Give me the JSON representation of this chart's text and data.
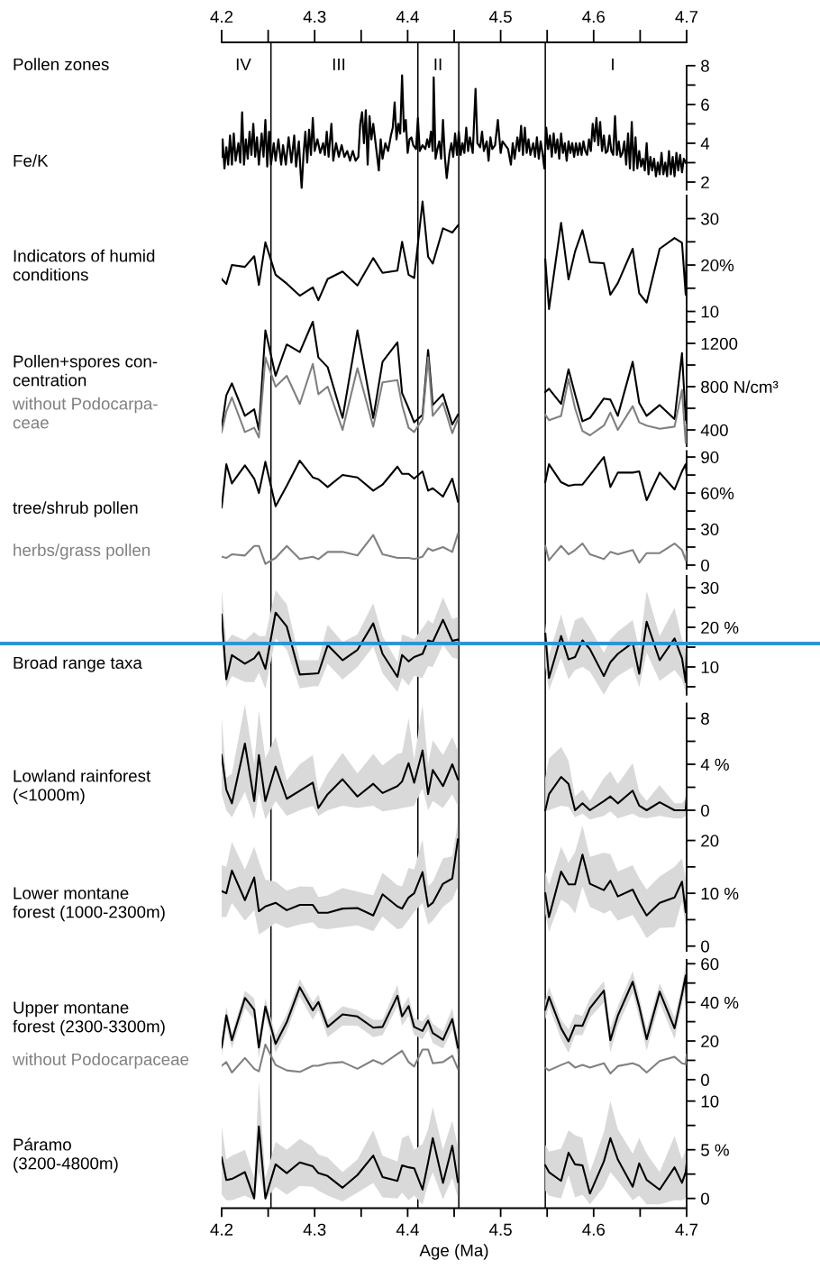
{
  "chart_data": [
    {
      "type": "line",
      "ylabel": "Fe/K",
      "annotations": [
        "Pollen zones",
        "IV",
        "III",
        "II",
        "I"
      ],
      "xlim": [
        4.2,
        4.7
      ],
      "x2lim": [
        4.2,
        4.7
      ],
      "x2ticks": [
        4.2,
        {
          "value": 4.25,
          "label": null
        },
        4.3,
        {
          "value": 4.35,
          "label": null
        },
        4.4,
        {
          "value": 4.45,
          "label": null
        },
        4.5,
        {
          "value": 4.55,
          "label": null
        },
        4.6,
        {
          "value": 4.65,
          "label": null
        },
        4.7
      ],
      "ylim": [
        1.6,
        9.2
      ],
      "yticks": [
        2,
        {
          "value": 3,
          "label": null
        },
        4,
        {
          "value": 5,
          "label": null
        },
        6,
        {
          "value": 7,
          "label": null
        },
        8
      ],
      "ref_lines": [
        {
          "axis": "x",
          "value": 4.253
        },
        {
          "axis": "x",
          "value": 4.411
        },
        {
          "axis": "x",
          "value": 4.455
        },
        {
          "axis": "x",
          "value": 4.548
        }
      ],
      "series": [
        {
          "color": "#000000",
          "x": [
            4.2,
            4.201,
            4.203,
            4.205,
            4.207,
            4.209,
            4.211,
            4.213,
            4.215,
            4.218,
            4.22,
            4.222,
            4.224,
            4.226,
            4.228,
            4.23,
            4.232,
            4.234,
            4.236,
            4.238,
            4.24,
            4.243,
            4.245,
            4.247,
            4.249,
            4.251,
            4.253,
            4.256,
            4.258,
            4.261,
            4.264,
            4.266,
            4.269,
            4.272,
            4.275,
            4.278,
            4.28,
            4.283,
            4.285,
            4.286,
            4.288,
            4.29,
            4.292,
            4.294,
            4.296,
            4.298,
            4.3,
            4.303,
            4.306,
            4.309,
            4.311,
            4.313,
            4.315,
            4.318,
            4.32,
            4.323,
            4.326,
            4.329,
            4.332,
            4.335,
            4.338,
            4.341,
            4.344,
            4.347,
            4.349,
            4.351,
            4.353,
            4.355,
            4.357,
            4.359,
            4.361,
            4.363,
            4.366,
            4.369,
            4.371,
            4.373,
            4.376,
            4.379,
            4.382,
            4.384,
            4.386,
            4.388,
            4.39,
            4.392,
            4.394,
            4.396,
            4.398,
            4.4,
            4.402,
            4.404,
            4.406,
            4.409,
            4.411,
            4.413,
            4.416,
            4.419,
            4.421,
            4.423,
            4.425,
            4.427,
            4.428,
            4.43,
            4.432,
            4.434,
            4.436,
            4.438,
            4.44,
            4.442,
            4.445,
            4.447,
            4.449,
            4.451,
            4.453,
            4.455,
            4.457,
            4.459,
            4.461,
            4.463,
            4.465,
            4.467,
            4.47,
            4.473,
            4.475,
            4.478,
            4.48,
            4.482,
            4.485,
            4.487,
            4.489,
            4.491,
            4.494,
            4.497,
            4.5,
            4.502,
            4.505,
            4.508,
            4.511,
            4.513,
            4.515,
            4.518,
            4.52,
            4.522,
            4.524,
            4.526,
            4.528,
            4.53,
            4.532,
            4.535,
            4.537,
            4.539,
            4.541,
            4.543,
            4.545,
            4.547,
            4.549,
            4.551,
            4.553,
            4.555,
            4.557,
            4.559,
            4.561,
            4.563,
            4.565,
            4.567,
            4.569,
            4.571,
            4.573,
            4.575,
            4.577,
            4.579,
            4.581,
            4.583,
            4.585,
            4.587,
            4.589,
            4.591,
            4.593,
            4.595,
            4.597,
            4.599,
            4.601,
            4.603,
            4.605,
            4.607,
            4.609,
            4.611,
            4.613,
            4.615,
            4.617,
            4.619,
            4.621,
            4.623,
            4.625,
            4.627,
            4.629,
            4.631,
            4.633,
            4.635,
            4.637,
            4.639,
            4.641,
            4.643,
            4.645,
            4.647,
            4.649,
            4.651,
            4.653,
            4.655,
            4.657,
            4.659,
            4.661,
            4.663,
            4.665,
            4.667,
            4.669,
            4.671,
            4.673,
            4.675,
            4.677,
            4.679,
            4.681,
            4.683,
            4.685,
            4.687,
            4.689,
            4.691,
            4.693,
            4.695,
            4.697,
            4.699
          ],
          "values": [
            3.3,
            4.2,
            2.7,
            3.8,
            2.9,
            4.4,
            2.9,
            4.5,
            3.1,
            4.0,
            3.0,
            5.6,
            2.9,
            4.2,
            3.2,
            4.6,
            3.4,
            5.0,
            3.3,
            4.3,
            2.9,
            4.5,
            3.3,
            5.2,
            2.8,
            4.6,
            2.9,
            4.0,
            3.1,
            4.2,
            2.9,
            3.9,
            2.9,
            4.3,
            3.0,
            4.4,
            2.8,
            4.1,
            2.4,
            1.7,
            3.4,
            4.6,
            3.0,
            4.7,
            3.4,
            5.3,
            3.6,
            4.2,
            3.5,
            4.0,
            3.4,
            4.6,
            3.3,
            5.0,
            3.1,
            4.0,
            3.3,
            3.9,
            3.3,
            3.6,
            3.1,
            3.6,
            3.1,
            3.3,
            5.0,
            5.6,
            4.0,
            5.7,
            2.9,
            5.4,
            4.2,
            5.0,
            3.8,
            2.6,
            4.2,
            3.2,
            4.0,
            3.6,
            4.4,
            4.8,
            6.1,
            4.2,
            5.0,
            4.5,
            7.5,
            4.6,
            5.2,
            3.5,
            4.2,
            4.3,
            3.9,
            3.7,
            5.3,
            3.6,
            3.9,
            3.7,
            4.2,
            3.8,
            4.6,
            3.6,
            7.4,
            3.2,
            3.7,
            4.1,
            3.2,
            5.2,
            3.3,
            2.2,
            3.5,
            4.0,
            3.3,
            4.5,
            3.4,
            4.6,
            3.4,
            4.0,
            3.5,
            4.8,
            3.6,
            4.3,
            3.5,
            6.8,
            4.0,
            3.8,
            4.6,
            3.6,
            4.1,
            3.1,
            4.3,
            3.7,
            3.9,
            5.2,
            3.5,
            4.1,
            3.9,
            3.7,
            2.9,
            4.0,
            3.2,
            4.3,
            3.6,
            4.9,
            3.4,
            4.8,
            3.5,
            4.2,
            3.4,
            4.0,
            3.3,
            4.3,
            3.2,
            4.1,
            3.5,
            2.7,
            4.8,
            3.7,
            4.4,
            3.3,
            4.5,
            3.5,
            4.2,
            3.2,
            4.5,
            3.5,
            4.0,
            3.1,
            4.1,
            3.5,
            4.0,
            3.3,
            4.0,
            3.4,
            4.0,
            3.4,
            4.1,
            3.6,
            3.4,
            4.2,
            3.6,
            5.0,
            4.1,
            5.3,
            3.9,
            5.1,
            3.6,
            4.4,
            3.5,
            3.6,
            4.4,
            3.6,
            3.4,
            5.4,
            3.4,
            4.1,
            3.3,
            3.5,
            4.1,
            2.9,
            4.5,
            2.7,
            5.1,
            2.6,
            4.3,
            2.7,
            3.6,
            2.8,
            3.2,
            2.6,
            4.0,
            2.4,
            3.3,
            2.6,
            3.2,
            2.3,
            3.0,
            2.4,
            3.5,
            2.4,
            3.0,
            2.3,
            3.6,
            2.4,
            3.3,
            2.3,
            3.5,
            2.6,
            3.4,
            2.5,
            3.2,
            3.0
          ]
        }
      ]
    },
    {
      "type": "line",
      "title": "Indicators of humid\nconditions",
      "tick_labels": "y",
      "xlim": [
        4.2,
        4.7
      ],
      "x": [
        4.2,
        4.205,
        4.211,
        4.225,
        4.235,
        4.24,
        4.247,
        4.258,
        4.27,
        4.284,
        4.298,
        4.304,
        4.314,
        4.33,
        4.346,
        4.363,
        4.373,
        4.389,
        4.394,
        4.401,
        4.407,
        4.416,
        4.422,
        4.427,
        4.438,
        4.448,
        4.454,
        4.5,
        4.548,
        4.552,
        4.565,
        4.573,
        4.58,
        4.588,
        4.596,
        4.611,
        4.618,
        4.626,
        4.642,
        4.649,
        4.657,
        4.671,
        4.687,
        4.695,
        4.699,
        4.7
      ],
      "ylim": [
        9,
        35
      ],
      "yticks": [
        10,
        {
          "value": 15,
          "label": null
        },
        {
          "value": 20,
          "label": "20%"
        },
        {
          "value": 25,
          "label": null
        },
        30
      ],
      "series": [
        {
          "color": "#000000",
          "values": [
            17,
            15.9,
            20,
            19.6,
            21.9,
            15.7,
            24.9,
            17.9,
            16,
            13.4,
            15.2,
            12.4,
            17,
            18.6,
            15.6,
            21.5,
            18.3,
            18.8,
            25,
            17.9,
            17.2,
            33.7,
            21.8,
            20.3,
            27.9,
            27,
            28.5,
            null,
            21.2,
            10.5,
            29.1,
            16.9,
            22.9,
            27.5,
            20.6,
            20.4,
            13.6,
            16.1,
            23.5,
            13.9,
            11.9,
            23.5,
            25.8,
            24.8,
            13.6,
            25.5
          ]
        }
      ]
    },
    {
      "type": "line",
      "title": "Pollen+spores con-\ncentration",
      "tick_labels": "y",
      "xlim": [
        4.2,
        4.7
      ],
      "x": [
        4.2,
        4.205,
        4.211,
        4.225,
        4.235,
        4.24,
        4.247,
        4.258,
        4.27,
        4.284,
        4.298,
        4.304,
        4.314,
        4.33,
        4.346,
        4.363,
        4.373,
        4.389,
        4.394,
        4.401,
        4.407,
        4.416,
        4.422,
        4.427,
        4.438,
        4.448,
        4.454,
        4.5,
        4.548,
        4.552,
        4.565,
        4.573,
        4.58,
        4.588,
        4.596,
        4.611,
        4.618,
        4.626,
        4.642,
        4.649,
        4.657,
        4.671,
        4.687,
        4.695,
        4.699,
        4.7
      ],
      "ylim": [
        250,
        1450
      ],
      "yticks": [
        400,
        {
          "value": 600,
          "label": null
        },
        {
          "value": 800,
          "label": "800 N/cm³"
        },
        {
          "value": 1000,
          "label": null
        },
        1200,
        {
          "value": 1400,
          "label": null
        }
      ],
      "series": [
        {
          "color": "#000000",
          "values": [
            420,
            720,
            830,
            530,
            590,
            400,
            1320,
            900,
            1190,
            1120,
            1400,
            1070,
            980,
            510,
            1320,
            510,
            1030,
            1210,
            740,
            600,
            470,
            540,
            1140,
            630,
            730,
            450,
            540,
            null,
            750,
            780,
            640,
            960,
            730,
            480,
            510,
            690,
            680,
            530,
            1030,
            650,
            530,
            630,
            500,
            1110,
            490,
            590
          ]
        },
        {
          "name": "without Podocarpa-\nceae",
          "color": "#808080",
          "values": [
            380,
            570,
            700,
            380,
            420,
            330,
            1070,
            800,
            900,
            640,
            1010,
            730,
            800,
            400,
            970,
            430,
            840,
            860,
            630,
            420,
            380,
            500,
            1070,
            530,
            650,
            370,
            500,
            null,
            540,
            490,
            530,
            870,
            600,
            390,
            350,
            440,
            560,
            400,
            620,
            470,
            440,
            410,
            430,
            770,
            280,
            450
          ]
        }
      ]
    },
    {
      "type": "line",
      "tick_labels": "y",
      "xlim": [
        4.2,
        4.7
      ],
      "x": [
        4.2,
        4.205,
        4.211,
        4.225,
        4.235,
        4.24,
        4.247,
        4.258,
        4.27,
        4.284,
        4.298,
        4.304,
        4.314,
        4.33,
        4.346,
        4.363,
        4.373,
        4.389,
        4.394,
        4.401,
        4.407,
        4.416,
        4.422,
        4.427,
        4.438,
        4.448,
        4.454,
        4.5,
        4.548,
        4.552,
        4.565,
        4.573,
        4.58,
        4.588,
        4.596,
        4.611,
        4.618,
        4.626,
        4.642,
        4.649,
        4.657,
        4.671,
        4.687,
        4.695,
        4.699,
        4.7
      ],
      "ylim": [
        -3,
        95
      ],
      "yticks": [
        0,
        {
          "value": 15,
          "label": null
        },
        30,
        {
          "value": 45,
          "label": null
        },
        {
          "value": 60,
          "label": "60%"
        },
        {
          "value": 75,
          "label": null
        },
        90
      ],
      "series": [
        {
          "name": "tree/shrub pollen",
          "color": "#000000",
          "values": [
            48,
            84,
            68,
            83,
            72,
            60,
            86,
            49,
            66,
            87,
            73,
            71.5,
            65,
            75,
            73,
            62,
            67,
            82,
            76,
            76,
            72,
            78,
            62,
            64,
            57,
            72,
            53,
            null,
            69,
            84,
            69,
            66,
            67,
            67,
            75,
            90,
            65,
            77,
            77,
            78,
            54,
            77,
            63,
            78,
            84,
            75
          ]
        },
        {
          "name": "herbs/grass pollen",
          "color": "#808080",
          "values": [
            7,
            6,
            9,
            8,
            16,
            16,
            1,
            6,
            16,
            5,
            7,
            5,
            11,
            11,
            8,
            25,
            9,
            6,
            6,
            6,
            5,
            7,
            14,
            12,
            15,
            11,
            26,
            null,
            16,
            4,
            16,
            9,
            12.5,
            18,
            9,
            5,
            11,
            9,
            12.5,
            2,
            10,
            10,
            18,
            12.5,
            4,
            11
          ]
        }
      ]
    },
    {
      "type": "line",
      "title": "Broad range taxa",
      "tick_labels": "y",
      "xlim": [
        4.2,
        4.7
      ],
      "x": [
        4.2,
        4.205,
        4.211,
        4.225,
        4.235,
        4.24,
        4.247,
        4.258,
        4.27,
        4.284,
        4.298,
        4.304,
        4.314,
        4.33,
        4.346,
        4.363,
        4.373,
        4.389,
        4.394,
        4.401,
        4.407,
        4.416,
        4.422,
        4.427,
        4.438,
        4.448,
        4.454,
        4.5,
        4.548,
        4.552,
        4.565,
        4.573,
        4.58,
        4.588,
        4.596,
        4.611,
        4.618,
        4.626,
        4.642,
        4.649,
        4.657,
        4.671,
        4.687,
        4.695,
        4.699,
        4.7
      ],
      "ylim": [
        3,
        33
      ],
      "yticks": [
        {
          "value": 5,
          "label": null
        },
        10,
        {
          "value": 15,
          "label": null
        },
        {
          "value": 20,
          "label": "20 %"
        },
        {
          "value": 25,
          "label": null
        },
        30
      ],
      "ref_lines": [
        {
          "axis": "y",
          "value": 15.9,
          "color": "#2e95d3"
        }
      ],
      "series": [
        {
          "color": "#000000",
          "values": [
            23.2,
            6.9,
            13,
            10.8,
            12.2,
            13.8,
            9.5,
            23.7,
            20.2,
            8.1,
            8.3,
            8.4,
            15.5,
            11.7,
            14.3,
            21,
            13.3,
            7.5,
            13,
            11.4,
            12.5,
            13.3,
            16.7,
            16.3,
            21.9,
            16.6,
            16.9,
            null,
            18.4,
            7.2,
            17.8,
            11.9,
            12.5,
            16.7,
            14.5,
            7.7,
            11.2,
            13.3,
            16.1,
            8.3,
            21.4,
            11.7,
            17.2,
            12.2,
            6.2,
            13.5
          ],
          "upper": [
            29.6,
            16.3,
            18.2,
            16.7,
            18.8,
            17.8,
            17.8,
            29.4,
            25.8,
            11.7,
            11.7,
            11.7,
            20.6,
            16.3,
            18.2,
            26.1,
            17.8,
            11.2,
            18.2,
            17.6,
            17,
            19.8,
            21.8,
            20.9,
            27.6,
            22.1,
            22.6,
            null,
            21,
            13,
            23.3,
            16.3,
            21.8,
            22.6,
            19.8,
            13.6,
            17,
            18.9,
            21.8,
            14.5,
            29.2,
            17.8,
            24.9,
            17,
            14.5,
            17
          ],
          "lower": [
            17,
            4.9,
            7.7,
            6.2,
            6.2,
            8.6,
            4.5,
            17.2,
            14.3,
            4.6,
            5.1,
            5.1,
            10.8,
            6.8,
            10,
            15.1,
            8.4,
            3.7,
            7.2,
            5.3,
            7.7,
            7.2,
            10.2,
            10,
            15.5,
            12.4,
            12,
            null,
            10,
            4.1,
            12.4,
            6.9,
            9.2,
            10,
            8.8,
            3,
            5.9,
            7.7,
            10,
            4.9,
            13.6,
            6.5,
            9.2,
            6.9,
            3.7,
            6.9
          ]
        }
      ]
    },
    {
      "type": "line",
      "title": "Lowland rainforest\n(<1000m)",
      "tick_labels": "y",
      "xlim": [
        4.2,
        4.7
      ],
      "x": [
        4.2,
        4.205,
        4.211,
        4.225,
        4.235,
        4.24,
        4.247,
        4.258,
        4.27,
        4.284,
        4.298,
        4.304,
        4.314,
        4.33,
        4.346,
        4.363,
        4.373,
        4.389,
        4.394,
        4.401,
        4.407,
        4.416,
        4.422,
        4.427,
        4.438,
        4.448,
        4.454,
        4.5,
        4.548,
        4.552,
        4.565,
        4.573,
        4.58,
        4.588,
        4.596,
        4.611,
        4.618,
        4.626,
        4.642,
        4.649,
        4.657,
        4.671,
        4.687,
        4.695,
        4.699,
        4.7
      ],
      "ylim": [
        -1,
        9.3
      ],
      "yticks": [
        0,
        {
          "value": 2,
          "label": null
        },
        {
          "value": 4,
          "label": "4 %"
        },
        {
          "value": 6,
          "label": null
        },
        8
      ],
      "series": [
        {
          "color": "#000000",
          "values": [
            4.8,
            1.8,
            0.6,
            5.8,
            0.8,
            4.8,
            0.8,
            3.8,
            1.0,
            1.7,
            2.4,
            0.2,
            1.4,
            2.7,
            1.2,
            2.3,
            1.5,
            2.1,
            2.5,
            4.1,
            2.4,
            5.2,
            1.4,
            3.5,
            2.1,
            4.0,
            2.7,
            null,
            0,
            1.4,
            2.9,
            2.3,
            0,
            0.6,
            0,
            0.8,
            1.2,
            0.6,
            1.7,
            0.4,
            0,
            0.7,
            0,
            0,
            0,
            1.2
          ],
          "upper": [
            8.1,
            2.8,
            3.2,
            9.2,
            4.0,
            8.7,
            4.5,
            6.4,
            2.6,
            4.0,
            4.8,
            1.6,
            3.2,
            5.0,
            3.2,
            4.9,
            3.9,
            4.9,
            5.0,
            8.0,
            4.4,
            9.2,
            4.0,
            6.1,
            4.8,
            6.4,
            5.2,
            null,
            2.8,
            4.5,
            5.5,
            4.3,
            1.2,
            1.8,
            0.8,
            2.8,
            3.4,
            2.3,
            4.1,
            1.6,
            0.8,
            2.2,
            0.6,
            0.6,
            1.0,
            2.6
          ],
          "lower": [
            1.4,
            0,
            -0.6,
            1.6,
            -0.8,
            1.6,
            -0.8,
            0.8,
            -0.5,
            0,
            0.4,
            -0.5,
            0,
            0.4,
            0.2,
            0.4,
            -0.1,
            0.1,
            0.2,
            0.3,
            0.4,
            1.9,
            0,
            0.8,
            0.2,
            1.4,
            0.4,
            null,
            -0.1,
            0,
            0.4,
            0.3,
            -0.6,
            -0.3,
            -0.8,
            -0.5,
            -0.1,
            -0.7,
            -0.3,
            -0.6,
            -0.7,
            -0.5,
            -0.7,
            -0.7,
            -0.5,
            0.3
          ]
        }
      ]
    },
    {
      "type": "line",
      "title": "Lower montane\nforest (1000-2300m)",
      "tick_labels": "y",
      "xlim": [
        4.2,
        4.7
      ],
      "x": [
        4.2,
        4.205,
        4.211,
        4.225,
        4.235,
        4.24,
        4.247,
        4.258,
        4.27,
        4.284,
        4.298,
        4.304,
        4.314,
        4.33,
        4.346,
        4.363,
        4.373,
        4.389,
        4.394,
        4.401,
        4.407,
        4.416,
        4.422,
        4.427,
        4.438,
        4.448,
        4.454,
        4.5,
        4.548,
        4.552,
        4.565,
        4.573,
        4.58,
        4.588,
        4.596,
        4.611,
        4.618,
        4.626,
        4.642,
        4.649,
        4.657,
        4.671,
        4.687,
        4.695,
        4.699,
        4.7
      ],
      "ylim": [
        -0.9,
        23.3
      ],
      "yticks": [
        0,
        {
          "value": 5,
          "label": null
        },
        {
          "value": 10,
          "label": "10 %"
        },
        {
          "value": 15,
          "label": null
        },
        20
      ],
      "series": [
        {
          "color": "#000000",
          "values": [
            10.4,
            10.0,
            14.3,
            8.7,
            13.0,
            6.6,
            7.5,
            8.2,
            6.8,
            7.8,
            7.8,
            6.3,
            6.3,
            7.1,
            7.2,
            5.8,
            9.8,
            7.5,
            7.1,
            9.2,
            10.0,
            14.0,
            7.5,
            8.2,
            11.8,
            12.8,
            20.2,
            null,
            10.0,
            5.5,
            14.1,
            11.7,
            11.7,
            17.3,
            11.8,
            10.6,
            12.4,
            9.4,
            10.7,
            8.2,
            5.8,
            8.2,
            9.2,
            12.2,
            6.4,
            9.6
          ],
          "upper": [
            15.3,
            15.0,
            19.7,
            14.5,
            18.8,
            16.1,
            12.6,
            12.2,
            10.5,
            11.3,
            11.2,
            9.3,
            9.6,
            11.0,
            10.3,
            9.6,
            13.9,
            11.5,
            11.3,
            14.8,
            14.5,
            20.2,
            11.3,
            12.2,
            16.6,
            17.0,
            23.3,
            null,
            14.1,
            11.5,
            18.8,
            15.8,
            17.8,
            22.8,
            16.9,
            17.7,
            17.4,
            14.1,
            15.3,
            12.9,
            10.7,
            13.2,
            15.0,
            16.6,
            12.6,
            14.5
          ],
          "lower": [
            5.5,
            5.5,
            8.2,
            4.8,
            6.8,
            2.2,
            3.0,
            4.4,
            3.4,
            4.1,
            4.5,
            3.4,
            3.2,
            3.6,
            3.9,
            2.8,
            5.6,
            3.2,
            3.4,
            5.0,
            6.5,
            8.2,
            4.1,
            4.8,
            7.4,
            8.8,
            11.3,
            null,
            6.2,
            2.7,
            8.8,
            7.9,
            6.2,
            11.3,
            7.4,
            6.2,
            6.8,
            4.8,
            5.9,
            3.9,
            1.5,
            3.4,
            3.6,
            8.5,
            3.9,
            5.9
          ]
        }
      ]
    },
    {
      "type": "line",
      "title": "Upper montane\nforest (2300-3300m)",
      "tick_labels": "y",
      "xlim": [
        4.2,
        4.7
      ],
      "x": [
        4.2,
        4.205,
        4.211,
        4.225,
        4.235,
        4.24,
        4.247,
        4.258,
        4.27,
        4.284,
        4.298,
        4.304,
        4.314,
        4.33,
        4.346,
        4.363,
        4.373,
        4.389,
        4.394,
        4.401,
        4.407,
        4.416,
        4.422,
        4.427,
        4.438,
        4.448,
        4.454,
        4.5,
        4.548,
        4.552,
        4.565,
        4.573,
        4.58,
        4.588,
        4.596,
        4.611,
        4.618,
        4.626,
        4.642,
        4.649,
        4.657,
        4.671,
        4.687,
        4.695,
        4.699,
        4.7
      ],
      "ylim": [
        0,
        62
      ],
      "yticks": [
        0,
        {
          "value": 10,
          "label": null
        },
        20,
        {
          "value": 30,
          "label": null
        },
        {
          "value": 40,
          "label": "40 %"
        },
        {
          "value": 50,
          "label": null
        },
        60
      ],
      "series": [
        {
          "color": "#000000",
          "values": [
            16.6,
            33.3,
            20.4,
            42.3,
            36.2,
            16.6,
            37.8,
            18.5,
            29.8,
            47.8,
            35.9,
            40.2,
            27.3,
            33.8,
            32.7,
            26.9,
            27.3,
            43.4,
            32.7,
            38.1,
            27.3,
            25.2,
            30.6,
            24.1,
            20.6,
            31.4,
            16.6,
            null,
            36.2,
            42.9,
            26.6,
            19.8,
            28.1,
            27.9,
            37.0,
            46.1,
            20.4,
            33.1,
            50.7,
            37.8,
            20.9,
            45.5,
            26.6,
            44.2,
            53.9,
            37.0
          ],
          "upper": [
            21,
            38,
            24,
            46,
            42,
            22,
            42,
            23,
            34,
            52,
            40,
            44,
            31,
            38,
            36,
            31,
            31,
            49,
            37,
            43,
            32,
            30,
            34,
            29,
            25,
            37,
            21,
            null,
            41,
            48,
            31,
            26,
            34,
            33,
            42,
            51,
            27,
            38,
            56,
            43,
            26,
            50,
            32,
            49,
            59,
            42
          ],
          "lower": [
            12,
            28,
            16,
            37,
            31,
            11,
            33,
            14,
            25,
            43,
            31,
            36,
            22,
            28,
            28,
            22,
            23,
            38,
            28,
            33,
            23,
            21,
            26,
            19,
            16,
            26,
            12,
            null,
            31,
            38,
            21,
            14,
            23,
            23,
            32,
            40,
            14,
            28,
            45,
            32,
            15,
            40,
            21,
            39,
            48,
            32
          ]
        },
        {
          "name": "without Podocarpaceae",
          "color": "#808080",
          "values": [
            7.2,
            9.1,
            3.7,
            11.2,
            5.6,
            4.3,
            18.2,
            7.6,
            4.8,
            4.0,
            7.2,
            7.2,
            8.5,
            9.1,
            5.6,
            10.1,
            8.0,
            13.3,
            14.9,
            9.1,
            6.8,
            15.6,
            15.6,
            8.5,
            9.1,
            12.4,
            5.6,
            null,
            6.1,
            4.8,
            7.6,
            9.1,
            6.3,
            7.6,
            6.3,
            8.5,
            3.2,
            7.0,
            8.5,
            7.2,
            3.7,
            9.6,
            11.8,
            8.5,
            8.0,
            12.9
          ]
        }
      ]
    },
    {
      "type": "line",
      "title": "Páramo\n(3200-4800m)",
      "xlabel": "Age (Ma)",
      "xlim": [
        4.2,
        4.7
      ],
      "xticks": [
        4.2,
        {
          "value": 4.25,
          "label": null
        },
        4.3,
        {
          "value": 4.35,
          "label": null
        },
        4.4,
        {
          "value": 4.45,
          "label": null
        },
        4.5,
        {
          "value": 4.55,
          "label": null
        },
        4.6,
        {
          "value": 4.65,
          "label": null
        },
        4.7
      ],
      "x": [
        4.2,
        4.205,
        4.211,
        4.225,
        4.235,
        4.24,
        4.247,
        4.258,
        4.27,
        4.284,
        4.298,
        4.304,
        4.314,
        4.33,
        4.346,
        4.363,
        4.373,
        4.389,
        4.394,
        4.401,
        4.407,
        4.416,
        4.422,
        4.427,
        4.438,
        4.448,
        4.454,
        4.5,
        4.548,
        4.552,
        4.565,
        4.573,
        4.58,
        4.588,
        4.596,
        4.611,
        4.618,
        4.626,
        4.642,
        4.649,
        4.657,
        4.671,
        4.687,
        4.695,
        4.699,
        4.7
      ],
      "ylim": [
        -1,
        12.1
      ],
      "yticks": [
        0,
        {
          "value": 2.5,
          "label": null
        },
        {
          "value": 5,
          "label": "5 %"
        },
        {
          "value": 7.5,
          "label": null
        },
        10
      ],
      "series": [
        {
          "color": "#000000",
          "values": [
            4.2,
            1.9,
            2.0,
            2.7,
            0,
            7.4,
            0,
            3.5,
            2.6,
            3.7,
            3.3,
            2.6,
            2.3,
            1.1,
            2.4,
            4.4,
            2.2,
            1.8,
            3.4,
            3.2,
            3.1,
            0.9,
            3.7,
            6.2,
            1.6,
            5.4,
            1.7,
            null,
            3.4,
            2.7,
            1.8,
            4.7,
            3.5,
            3.4,
            0.5,
            3.8,
            6.2,
            4.0,
            1.2,
            3.6,
            1.9,
            0.9,
            3.2,
            1.6,
            2.7,
            3.6
          ],
          "upper": [
            7.4,
            4.0,
            4.4,
            5.0,
            2.1,
            12.0,
            2.1,
            5.8,
            5.0,
            6.1,
            5.3,
            4.5,
            4.2,
            2.7,
            4.0,
            7.0,
            4.4,
            3.8,
            6.2,
            6.5,
            5.0,
            5.6,
            7.1,
            9.4,
            5.0,
            8.0,
            5.3,
            null,
            5.5,
            4.8,
            5.1,
            7.0,
            6.5,
            6.2,
            2.7,
            6.8,
            10.0,
            7.1,
            4.6,
            6.2,
            4.6,
            2.7,
            6.4,
            4.0,
            5.0,
            5.6
          ],
          "lower": [
            0.4,
            -0.2,
            -0.2,
            0.3,
            -0.2,
            2.7,
            -0.2,
            1.2,
            0.4,
            1.3,
            1.2,
            0.8,
            0.3,
            -0.3,
            0.6,
            1.6,
            0.1,
            0,
            0.6,
            -0.2,
            0.3,
            -0.6,
            1.5,
            2.7,
            -0.1,
            2.1,
            0.1,
            null,
            0.8,
            0.3,
            0,
            2.4,
            0.1,
            0.4,
            -0.6,
            1.2,
            2.7,
            1.8,
            -0.2,
            0.3,
            -0.6,
            -0.6,
            -0.2,
            -0.2,
            0,
            0.8
          ]
        }
      ]
    }
  ]
}
